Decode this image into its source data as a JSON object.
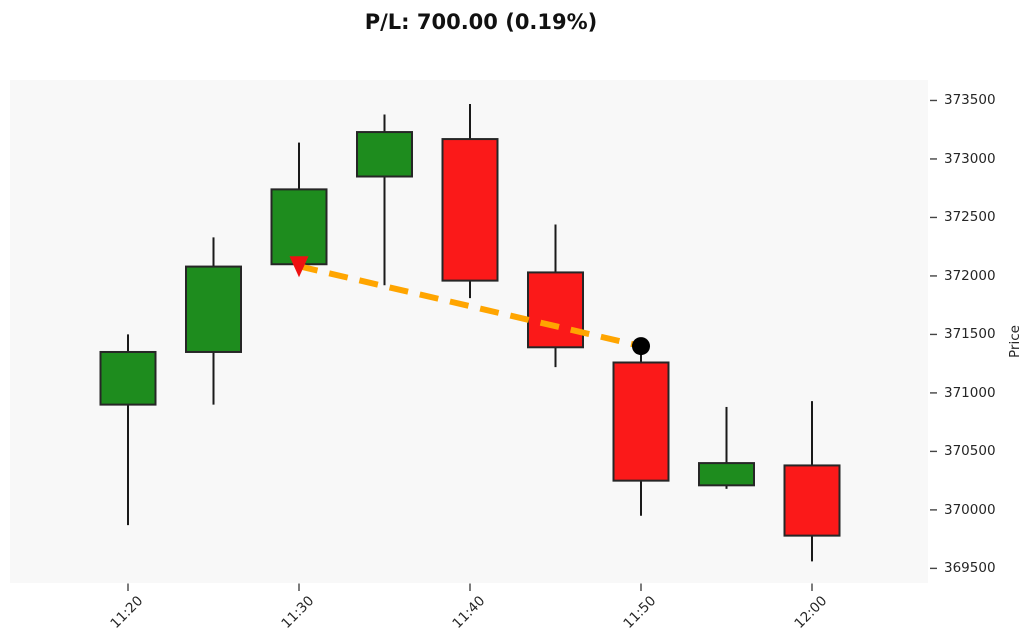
{
  "chart_data": {
    "type": "candlestick",
    "title": "P/L: 700.00 (0.19%)",
    "ylabel": "Price",
    "xlabel": "",
    "grid": false,
    "legend": "none",
    "x_interval_minutes": 5,
    "x_tick_labels": [
      "11:20",
      "11:30",
      "11:40",
      "11:50",
      "12:00"
    ],
    "x_tick_indices": [
      0,
      2,
      4,
      6,
      8
    ],
    "y_ticks": [
      373500,
      373000,
      372500,
      372000,
      371500,
      371000,
      370500,
      370000,
      369500
    ],
    "ylim": [
      369375,
      373675
    ],
    "candles": [
      {
        "time": "11:20",
        "open": 370900,
        "high": 371500,
        "low": 369870,
        "close": 371350
      },
      {
        "time": "11:25",
        "open": 371350,
        "high": 372330,
        "low": 370900,
        "close": 372080
      },
      {
        "time": "11:30",
        "open": 372100,
        "high": 373140,
        "low": 372080,
        "close": 372740
      },
      {
        "time": "11:35",
        "open": 372850,
        "high": 373380,
        "low": 371920,
        "close": 373230
      },
      {
        "time": "11:40",
        "open": 373170,
        "high": 373470,
        "low": 371810,
        "close": 371960
      },
      {
        "time": "11:45",
        "open": 372030,
        "high": 372440,
        "low": 371220,
        "close": 371390
      },
      {
        "time": "11:50",
        "open": 371260,
        "high": 371400,
        "low": 369950,
        "close": 370250
      },
      {
        "time": "11:55",
        "open": 370210,
        "high": 370880,
        "low": 370180,
        "close": 370400
      },
      {
        "time": "12:00",
        "open": 370380,
        "high": 370930,
        "low": 369560,
        "close": 369780
      }
    ],
    "trade_annotation": {
      "entry": {
        "time": "11:30",
        "index": 2,
        "price": 372100,
        "marker": "down-arrow"
      },
      "exit": {
        "time": "11:50",
        "index": 6,
        "price": 371400,
        "marker": "dot"
      },
      "pl": "700.00",
      "pl_pct": "0.19%"
    },
    "colors": {
      "up": "#1e8c1e",
      "down": "#fb1919",
      "wick": "#1a1a1a",
      "edge": "#262626",
      "annotation_line": "#ffa500",
      "entry_marker": "#ee1111",
      "exit_marker": "#000000",
      "plot_bg": "#f8f8f8",
      "tick_text": "#262626",
      "tick_mark": "#444444",
      "title_text": "#111111"
    }
  }
}
